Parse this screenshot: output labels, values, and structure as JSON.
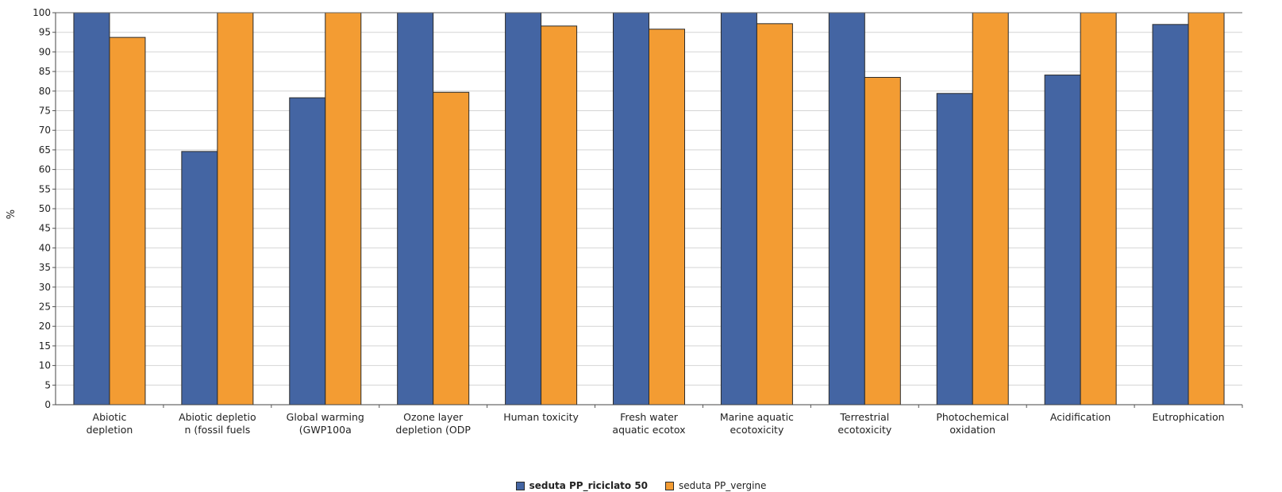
{
  "chart_data": {
    "type": "bar",
    "title": "",
    "xlabel": "",
    "ylabel": "%",
    "ylim": [
      0,
      100
    ],
    "ytick_step": 5,
    "grid": true,
    "legend_position": "bottom-center",
    "categories": [
      [
        "Abiotic",
        "depletion"
      ],
      [
        "Abiotic depletio",
        "n (fossil fuels"
      ],
      [
        "Global warming",
        "(GWP100a"
      ],
      [
        "Ozone layer",
        "depletion (ODP"
      ],
      [
        "Human toxicity"
      ],
      [
        "Fresh water",
        "aquatic ecotox"
      ],
      [
        "Marine aquatic",
        "ecotoxicity"
      ],
      [
        "Terrestrial",
        "ecotoxicity"
      ],
      [
        "Photochemical",
        "oxidation"
      ],
      [
        "Acidification"
      ],
      [
        "Eutrophication"
      ]
    ],
    "series": [
      {
        "name": "seduta PP_riciclato 50",
        "color": "#4465a3",
        "values": [
          100,
          64.6,
          78.3,
          100,
          100,
          100,
          100,
          100,
          79.4,
          84.1,
          97
        ]
      },
      {
        "name": "seduta PP_vergine",
        "color": "#f39c33",
        "values": [
          93.7,
          100,
          100,
          79.7,
          96.6,
          95.8,
          97.2,
          83.5,
          100,
          100,
          100
        ]
      }
    ]
  },
  "legend": {
    "items": [
      {
        "label": "seduta PP_riciclato 50",
        "color": "#4465a3",
        "bold": true
      },
      {
        "label": "seduta PP_vergine",
        "color": "#f39c33",
        "bold": false
      }
    ]
  }
}
